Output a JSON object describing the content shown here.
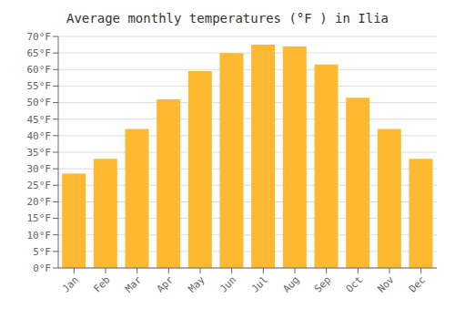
{
  "chart_data": {
    "type": "bar",
    "title": "Average monthly temperatures (°F ) in Ilia",
    "categories": [
      "Jan",
      "Feb",
      "Mar",
      "Apr",
      "May",
      "Jun",
      "Jul",
      "Aug",
      "Sep",
      "Oct",
      "Nov",
      "Dec"
    ],
    "values": [
      28.5,
      33,
      42,
      51,
      59.5,
      65,
      67.5,
      67,
      61.5,
      51.5,
      42,
      33
    ],
    "color": "#FDB931",
    "ylim": [
      0,
      70
    ],
    "yticks": [
      {
        "value": 0,
        "label": "0°F"
      },
      {
        "value": 5,
        "label": "5°F"
      },
      {
        "value": 10,
        "label": "10°F"
      },
      {
        "value": 15,
        "label": "15°F"
      },
      {
        "value": 20,
        "label": "20°F"
      },
      {
        "value": 25,
        "label": "25°F"
      },
      {
        "value": 30,
        "label": "30°F"
      },
      {
        "value": 35,
        "label": "35°F"
      },
      {
        "value": 40,
        "label": "40°F"
      },
      {
        "value": 45,
        "label": "45°F"
      },
      {
        "value": 50,
        "label": "50°F"
      },
      {
        "value": 55,
        "label": "55°F"
      },
      {
        "value": 60,
        "label": "60°F"
      },
      {
        "value": 65,
        "label": "65°F"
      },
      {
        "value": 70,
        "label": "70°F"
      }
    ],
    "grid": true
  }
}
